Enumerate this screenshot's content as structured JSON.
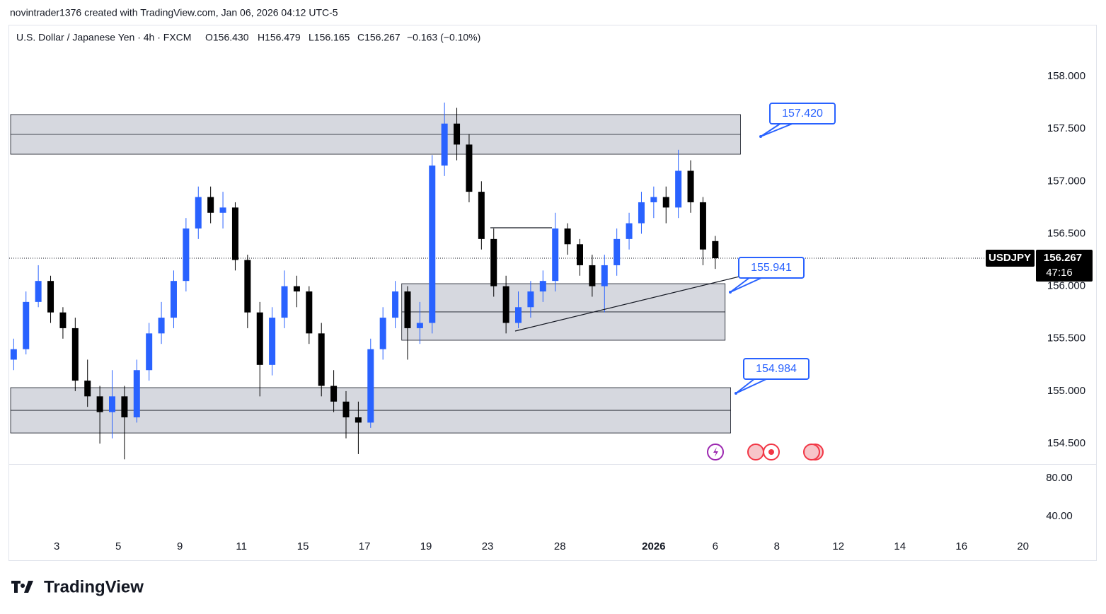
{
  "header": {
    "caption": "novintrader1376 created with TradingView.com, Jan 06, 2026 04:12 UTC-5",
    "footer_logo": "TradingView"
  },
  "chart_data": {
    "type": "candlestick",
    "legend": {
      "symbol_desc": "U.S. Dollar / Japanese Yen · 4h · FXCM",
      "open": "O156.430",
      "high": "H156.479",
      "low": "L156.165",
      "close": "C156.267",
      "change": "−0.163 (−0.10%)"
    },
    "x": [
      0.1,
      0.5,
      0.9,
      1.3,
      1.7,
      2.1,
      2.5,
      2.9,
      3.3,
      3.7,
      4.1,
      4.5,
      4.9,
      5.3,
      5.7,
      6.1,
      6.5,
      6.9,
      7.3,
      7.7,
      8.1,
      8.5,
      8.9,
      9.3,
      9.7,
      10.1,
      10.5,
      10.9,
      11.3,
      11.7,
      12.1,
      12.5,
      12.9,
      13.3,
      13.7,
      14.1,
      14.5,
      14.9,
      15.3,
      15.7,
      16.1,
      16.5,
      16.9,
      17.3,
      17.7,
      18.1,
      18.5,
      18.9,
      19.3,
      19.7,
      20.1,
      20.5,
      20.9,
      21.3,
      21.7,
      22.1,
      22.5,
      22.9
    ],
    "open": [
      155.3,
      155.4,
      155.85,
      156.05,
      155.75,
      155.6,
      155.1,
      154.95,
      154.8,
      154.95,
      154.75,
      155.2,
      155.55,
      155.7,
      156.05,
      156.55,
      156.85,
      156.7,
      156.75,
      156.25,
      155.75,
      155.25,
      155.7,
      156.0,
      155.95,
      155.55,
      155.05,
      154.9,
      154.75,
      154.7,
      155.4,
      155.7,
      155.95,
      155.6,
      155.65,
      157.15,
      157.55,
      157.35,
      156.9,
      156.45,
      156.0,
      155.65,
      155.8,
      155.95,
      156.05,
      156.55,
      156.4,
      156.2,
      156.0,
      156.2,
      156.45,
      156.6,
      156.8,
      156.85,
      156.75,
      157.1,
      156.8,
      156.43
    ],
    "high": [
      155.5,
      155.95,
      156.2,
      156.1,
      155.8,
      155.7,
      155.3,
      155.05,
      155.2,
      155.05,
      155.3,
      155.65,
      155.85,
      156.15,
      156.65,
      156.95,
      156.95,
      156.9,
      156.8,
      156.3,
      155.85,
      155.8,
      156.15,
      156.1,
      156.0,
      155.65,
      155.2,
      155.0,
      154.9,
      155.5,
      155.8,
      156.05,
      156.0,
      155.85,
      157.25,
      157.75,
      157.7,
      157.45,
      157.0,
      156.55,
      156.1,
      155.95,
      156.05,
      156.15,
      156.7,
      156.6,
      156.45,
      156.3,
      156.3,
      156.55,
      156.7,
      156.9,
      156.95,
      156.95,
      157.3,
      157.2,
      156.85,
      156.479
    ],
    "low": [
      155.2,
      155.35,
      155.8,
      155.65,
      155.5,
      155.0,
      154.85,
      154.5,
      154.55,
      154.35,
      154.7,
      155.1,
      155.45,
      155.6,
      155.95,
      156.45,
      156.6,
      156.55,
      156.15,
      155.6,
      154.95,
      155.15,
      155.6,
      155.8,
      155.45,
      154.95,
      154.8,
      154.55,
      154.4,
      154.65,
      155.3,
      155.6,
      155.3,
      155.45,
      155.55,
      157.05,
      157.2,
      156.8,
      156.35,
      155.9,
      155.55,
      155.6,
      155.7,
      155.85,
      155.95,
      156.3,
      156.1,
      155.9,
      155.75,
      156.1,
      156.35,
      156.5,
      156.65,
      156.6,
      156.65,
      156.7,
      156.2,
      156.165
    ],
    "close": [
      155.4,
      155.85,
      156.05,
      155.75,
      155.6,
      155.1,
      154.95,
      154.8,
      154.95,
      154.75,
      155.2,
      155.55,
      155.7,
      156.05,
      156.55,
      156.85,
      156.7,
      156.75,
      156.25,
      155.75,
      155.25,
      155.7,
      156.0,
      155.95,
      155.55,
      155.05,
      154.9,
      154.75,
      154.7,
      155.4,
      155.7,
      155.95,
      155.6,
      155.65,
      157.15,
      157.55,
      157.35,
      156.9,
      156.45,
      156.0,
      155.65,
      155.8,
      155.95,
      156.05,
      156.55,
      156.4,
      156.2,
      156.0,
      156.2,
      156.45,
      156.6,
      156.8,
      156.85,
      156.75,
      157.1,
      156.8,
      156.35,
      156.267
    ],
    "up_color": "#2962ff",
    "down_color": "#000000",
    "xlim": [
      0,
      33.85
    ],
    "xticks": [
      {
        "value": 1.5,
        "label": "3"
      },
      {
        "value": 3.5,
        "label": "5"
      },
      {
        "value": 5.5,
        "label": "9"
      },
      {
        "value": 7.5,
        "label": "11"
      },
      {
        "value": 9.5,
        "label": "15"
      },
      {
        "value": 11.5,
        "label": "17"
      },
      {
        "value": 13.5,
        "label": "19"
      },
      {
        "value": 15.5,
        "label": "23"
      },
      {
        "value": 17.85,
        "label": "28"
      },
      {
        "value": 20.9,
        "label": "2026"
      },
      {
        "value": 22.9,
        "label": "6"
      },
      {
        "value": 24.9,
        "label": "8"
      },
      {
        "value": 26.9,
        "label": "12"
      },
      {
        "value": 28.9,
        "label": "14"
      },
      {
        "value": 30.9,
        "label": "16"
      },
      {
        "value": 32.9,
        "label": "20"
      }
    ],
    "ylim": [
      154.305,
      158.492
    ],
    "yticks": [
      {
        "value": 158,
        "label": "158.000"
      },
      {
        "value": 157.5,
        "label": "157.500"
      },
      {
        "value": 157,
        "label": "157.000"
      },
      {
        "value": 156.5,
        "label": "156.500"
      },
      {
        "value": 156,
        "label": "156.000"
      },
      {
        "value": 155.5,
        "label": "155.500"
      },
      {
        "value": 155,
        "label": "155.000"
      },
      {
        "value": 154.5,
        "label": "154.500"
      }
    ],
    "zones": [
      {
        "x": [
          0,
          23.72
        ],
        "y": [
          157.258,
          157.636
        ],
        "mid": 157.447
      },
      {
        "x": [
          12.71,
          23.22
        ],
        "y": [
          155.485,
          156.024
        ],
        "mid": 155.755
      },
      {
        "x": [
          0,
          23.4
        ],
        "y": [
          154.601,
          155.033
        ],
        "mid": 154.817
      }
    ],
    "callouts": [
      "157.420",
      "155.941",
      "154.984"
    ],
    "last_price": {
      "symbol": "USDJPY",
      "value": 156.267,
      "label": "156.267",
      "countdown": "47:16"
    },
    "indicator_pane": {
      "ylim": [
        17.8,
        94.8
      ],
      "yticks": [
        {
          "value": 80,
          "label": "80.00"
        },
        {
          "value": 40,
          "label": "40.00"
        }
      ]
    }
  }
}
